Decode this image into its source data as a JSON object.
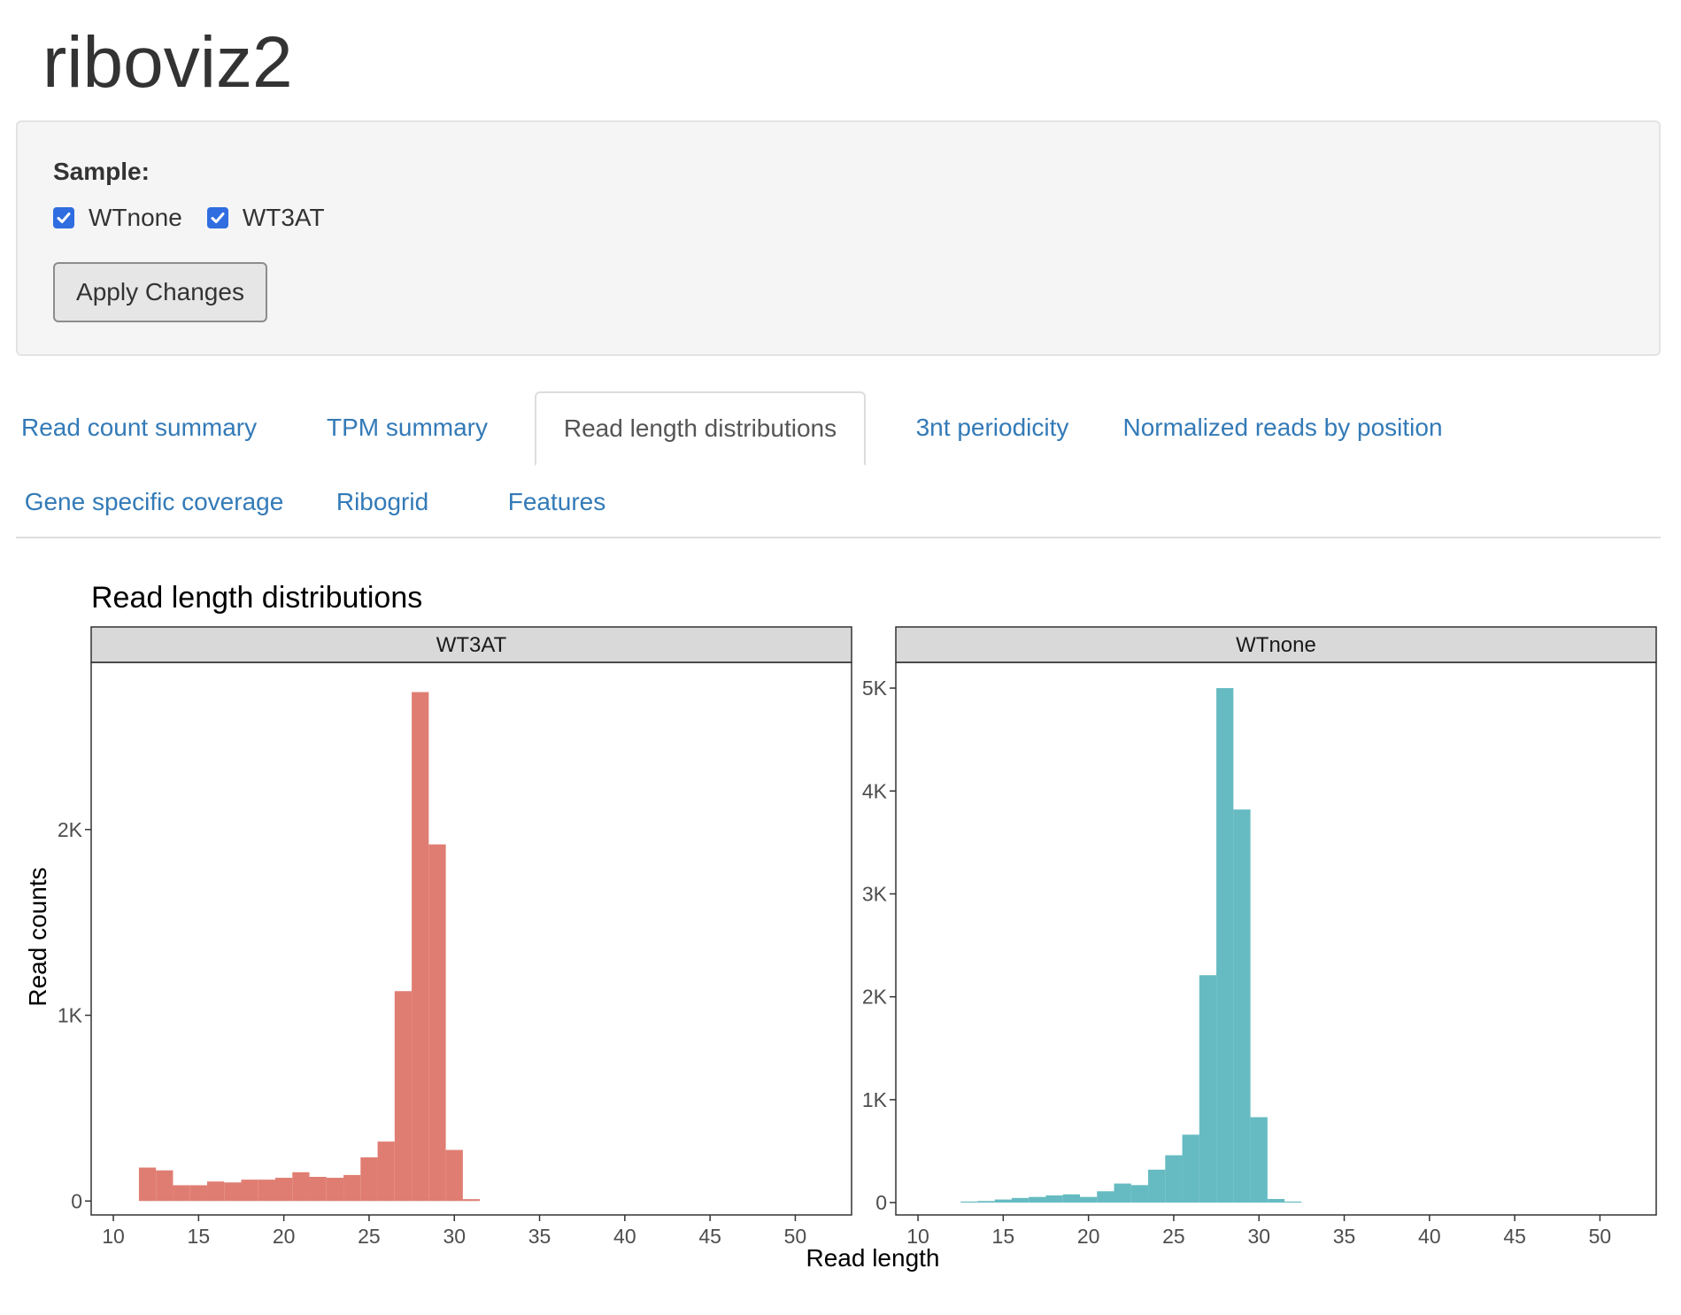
{
  "app": {
    "title": "riboviz2"
  },
  "sidebar": {
    "sample_label": "Sample:",
    "samples": [
      {
        "label": "WTnone",
        "checked": true
      },
      {
        "label": "WT3AT",
        "checked": true
      }
    ],
    "apply_label": "Apply Changes",
    "checkbox_color": "#2f6de1"
  },
  "tabs": [
    {
      "label": "Read count summary",
      "active": false
    },
    {
      "label": "TPM summary",
      "active": false
    },
    {
      "label": "Read length distributions",
      "active": true
    },
    {
      "label": "3nt periodicity",
      "active": false
    },
    {
      "label": "Normalized reads by position",
      "active": false
    },
    {
      "label": "Gene specific coverage",
      "active": false
    },
    {
      "label": "Ribogrid",
      "active": false
    },
    {
      "label": "Features",
      "active": false
    }
  ],
  "chart_data": {
    "type": "bar",
    "title": "Read length distributions",
    "xlabel": "Read length",
    "ylabel": "Read counts",
    "xlim": [
      8.7,
      53.3
    ],
    "x_ticks": [
      10,
      15,
      20,
      25,
      30,
      35,
      40,
      45,
      50
    ],
    "grid": false,
    "legend": "none",
    "panels": [
      {
        "name": "WT3AT",
        "color": "#e07d72",
        "ylim": [
          -75,
          2900
        ],
        "y_ticks": [
          0,
          1000,
          2000
        ],
        "y_tick_labels": [
          "0",
          "1K",
          "2K"
        ],
        "x": [
          12,
          13,
          14,
          15,
          16,
          17,
          18,
          19,
          20,
          21,
          22,
          23,
          24,
          25,
          26,
          27,
          28,
          29,
          30,
          31
        ],
        "values": [
          180,
          165,
          85,
          85,
          105,
          100,
          115,
          115,
          125,
          155,
          130,
          125,
          140,
          235,
          320,
          1130,
          2740,
          1920,
          275,
          10
        ]
      },
      {
        "name": "WTnone",
        "color": "#65bbc1",
        "ylim": [
          -120,
          5250
        ],
        "y_ticks": [
          0,
          1000,
          2000,
          3000,
          4000,
          5000
        ],
        "y_tick_labels": [
          "0",
          "1K",
          "2K",
          "3K",
          "4K",
          "5K"
        ],
        "x": [
          13,
          14,
          15,
          16,
          17,
          18,
          19,
          20,
          21,
          22,
          23,
          24,
          25,
          26,
          27,
          28,
          29,
          30,
          31,
          32
        ],
        "values": [
          10,
          15,
          30,
          45,
          55,
          70,
          80,
          55,
          110,
          185,
          170,
          320,
          460,
          660,
          2210,
          5000,
          3820,
          830,
          35,
          10
        ]
      }
    ]
  }
}
